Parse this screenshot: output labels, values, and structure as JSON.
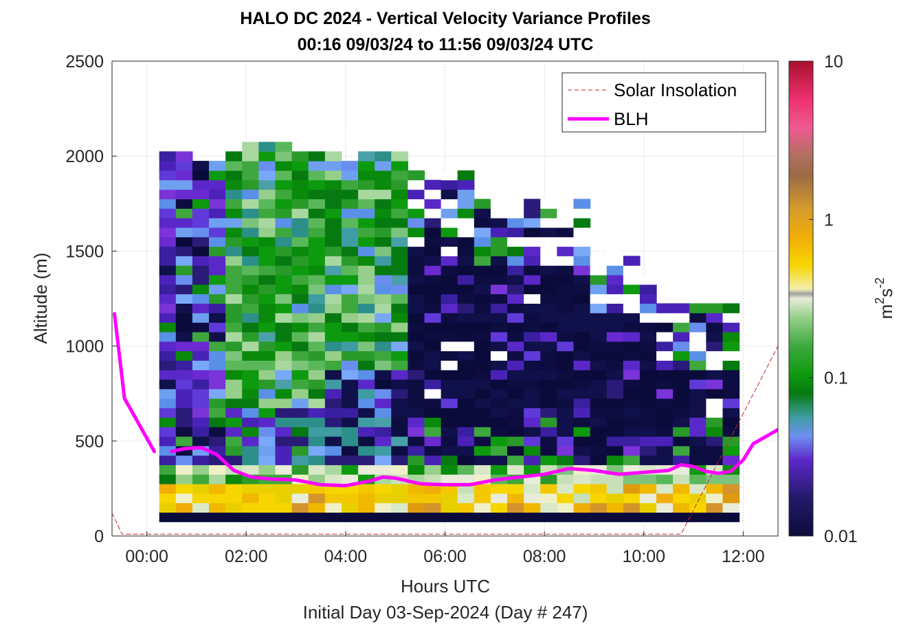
{
  "chart_data": {
    "type": "heatmap",
    "title": "HALO DC 2024 - Vertical Velocity Variance Profiles",
    "subtitle": "00:16 09/03/24 to 11:56 09/03/24  UTC",
    "xlabel": "Hours UTC",
    "ylabel": "Altitude (m)",
    "footer": "Initial Day 03-Sep-2024 (Day # 247)",
    "xlim_hours": [
      -0.7,
      12.7
    ],
    "ylim": [
      0,
      2500
    ],
    "x_ticks": [
      "00:00",
      "02:00",
      "04:00",
      "06:00",
      "08:00",
      "10:00",
      "12:00"
    ],
    "x_tick_values": [
      0,
      2,
      4,
      6,
      8,
      10,
      12
    ],
    "y_ticks": [
      "0",
      "500",
      "1000",
      "1500",
      "2000",
      "2500"
    ],
    "y_tick_values": [
      0,
      500,
      1000,
      1500,
      2000,
      2500
    ],
    "grid": true,
    "legend_position": "top-right",
    "colorbar": {
      "label_base": "m",
      "label_sup1": "2",
      "label_mid": "s",
      "label_sup2": "-2",
      "scale": "log",
      "range": [
        0.01,
        10
      ],
      "ticks": [
        "0.01",
        "0.1",
        "1",
        "10"
      ],
      "tick_values": [
        0.01,
        0.1,
        1,
        10
      ]
    },
    "heatmap": {
      "x_start_hours": 0.25,
      "x_end_hours": 11.92,
      "n_columns": 35,
      "bin_height_m": 50,
      "lowest_bin_m": 100,
      "highest_bin_m": 2050
    },
    "series": [
      {
        "name": "Solar Insolation",
        "style": "dashed",
        "color": "#cc2222",
        "x": [
          -0.7,
          -0.5,
          10.75,
          12.7
        ],
        "y": [
          120,
          10,
          10,
          1000
        ]
      },
      {
        "name": "BLH",
        "style": "solid",
        "color": "#ff00ff",
        "x": [
          -0.65,
          -0.45,
          0.15,
          null,
          0.5,
          0.75,
          1.1,
          1.4,
          1.75,
          2.1,
          2.5,
          3.0,
          3.5,
          4.0,
          4.5,
          4.75,
          5.0,
          5.5,
          6.0,
          6.5,
          7.0,
          7.5,
          8.0,
          8.5,
          9.0,
          9.5,
          10.0,
          10.5,
          10.75,
          11.0,
          11.25,
          11.5,
          11.75,
          12.0,
          12.2,
          12.5,
          12.7
        ],
        "y": [
          1170,
          725,
          445,
          null,
          445,
          460,
          465,
          430,
          345,
          310,
          300,
          295,
          270,
          265,
          290,
          310,
          305,
          275,
          270,
          270,
          295,
          310,
          325,
          355,
          345,
          325,
          335,
          345,
          375,
          365,
          340,
          330,
          340,
          400,
          485,
          530,
          560
        ]
      }
    ]
  }
}
